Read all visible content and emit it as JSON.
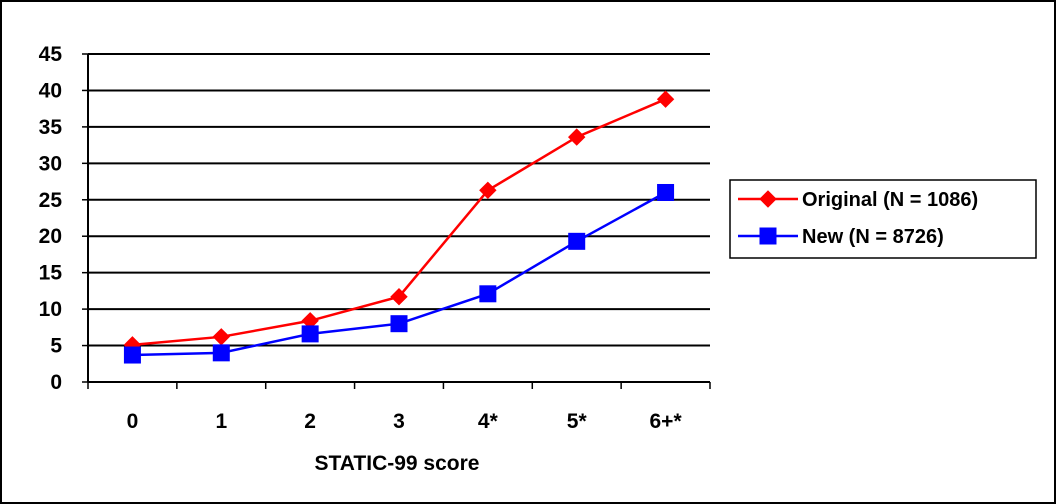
{
  "chart_data": {
    "type": "line",
    "title": "",
    "xlabel": "STATIC-99 score",
    "ylabel": "",
    "categories": [
      "0",
      "1",
      "2",
      "3",
      "4*",
      "5*",
      "6+*"
    ],
    "ylim": [
      0,
      45
    ],
    "yticks": [
      "0",
      "5",
      "10",
      "15",
      "20",
      "25",
      "30",
      "35",
      "40",
      "45"
    ],
    "grid": "horizontal",
    "legend_position": "right",
    "series": [
      {
        "name": "Original (N = 1086)",
        "color": "#ff0000",
        "marker": "diamond",
        "values": [
          5.1,
          6.2,
          8.4,
          11.7,
          26.3,
          33.6,
          38.8
        ]
      },
      {
        "name": "New (N = 8726)",
        "color": "#0000ff",
        "marker": "square",
        "values": [
          3.7,
          4.0,
          6.6,
          8.0,
          12.1,
          19.3,
          26.0
        ]
      }
    ]
  }
}
